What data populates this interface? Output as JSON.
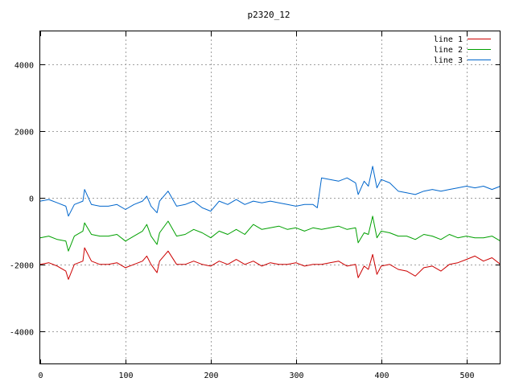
{
  "chart_data": {
    "type": "line",
    "title": "p2320_12",
    "xlabel": "",
    "ylabel": "",
    "xlim": [
      0,
      540
    ],
    "ylim": [
      -5000,
      5000
    ],
    "xticks": [
      0,
      100,
      200,
      300,
      400,
      500
    ],
    "yticks": [
      -4000,
      -2000,
      0,
      2000,
      4000
    ],
    "grid": true,
    "legend_position": "top-right",
    "series": [
      {
        "name": "line 1",
        "color": "#cc0000",
        "x": [
          0,
          10,
          20,
          30,
          33,
          40,
          50,
          52,
          60,
          70,
          80,
          90,
          100,
          110,
          120,
          125,
          130,
          137,
          140,
          150,
          160,
          170,
          180,
          190,
          200,
          210,
          220,
          230,
          240,
          250,
          260,
          270,
          280,
          290,
          300,
          310,
          320,
          330,
          340,
          350,
          360,
          370,
          373,
          380,
          385,
          390,
          395,
          400,
          410,
          420,
          430,
          440,
          450,
          460,
          470,
          480,
          490,
          500,
          510,
          520,
          530,
          540
        ],
        "y": [
          -2000,
          -1950,
          -2050,
          -2200,
          -2450,
          -2000,
          -1900,
          -1500,
          -1900,
          -2000,
          -2000,
          -1950,
          -2100,
          -2000,
          -1900,
          -1750,
          -2000,
          -2250,
          -1900,
          -1600,
          -2000,
          -2000,
          -1900,
          -2000,
          -2050,
          -1900,
          -2000,
          -1850,
          -2000,
          -1900,
          -2050,
          -1950,
          -2000,
          -2000,
          -1950,
          -2050,
          -2000,
          -2000,
          -1950,
          -1900,
          -2050,
          -2000,
          -2400,
          -2050,
          -2150,
          -1700,
          -2300,
          -2050,
          -2000,
          -2150,
          -2200,
          -2350,
          -2100,
          -2050,
          -2200,
          -2000,
          -1950,
          -1850,
          -1750,
          -1900,
          -1800,
          -2000
        ]
      },
      {
        "name": "line 2",
        "color": "#00a000",
        "x": [
          0,
          10,
          20,
          30,
          33,
          40,
          50,
          52,
          60,
          70,
          80,
          90,
          100,
          110,
          120,
          125,
          130,
          137,
          140,
          150,
          160,
          170,
          180,
          190,
          200,
          210,
          220,
          230,
          240,
          250,
          260,
          270,
          280,
          290,
          300,
          310,
          320,
          330,
          340,
          350,
          360,
          370,
          373,
          380,
          385,
          390,
          395,
          400,
          410,
          420,
          430,
          440,
          450,
          460,
          470,
          480,
          490,
          500,
          510,
          520,
          530,
          540
        ],
        "y": [
          -1200,
          -1150,
          -1250,
          -1300,
          -1600,
          -1150,
          -1000,
          -750,
          -1100,
          -1150,
          -1150,
          -1100,
          -1300,
          -1150,
          -1000,
          -800,
          -1150,
          -1400,
          -1050,
          -700,
          -1150,
          -1100,
          -950,
          -1050,
          -1200,
          -1000,
          -1100,
          -950,
          -1100,
          -800,
          -950,
          -900,
          -850,
          -950,
          -900,
          -1000,
          -900,
          -950,
          -900,
          -850,
          -950,
          -900,
          -1350,
          -1050,
          -1100,
          -550,
          -1200,
          -1000,
          -1050,
          -1150,
          -1150,
          -1250,
          -1100,
          -1150,
          -1250,
          -1100,
          -1200,
          -1150,
          -1200,
          -1200,
          -1150,
          -1300
        ]
      },
      {
        "name": "line 3",
        "color": "#0066cc",
        "x": [
          0,
          10,
          20,
          30,
          33,
          40,
          50,
          52,
          60,
          70,
          80,
          90,
          100,
          110,
          120,
          125,
          130,
          137,
          140,
          150,
          160,
          170,
          180,
          190,
          200,
          210,
          220,
          230,
          240,
          250,
          260,
          270,
          280,
          290,
          300,
          310,
          320,
          325,
          330,
          340,
          350,
          360,
          370,
          373,
          380,
          385,
          390,
          395,
          400,
          410,
          420,
          430,
          440,
          450,
          460,
          470,
          480,
          490,
          500,
          510,
          520,
          530,
          540
        ],
        "y": [
          -100,
          -50,
          -150,
          -250,
          -550,
          -200,
          -100,
          250,
          -200,
          -250,
          -250,
          -200,
          -350,
          -200,
          -100,
          50,
          -250,
          -450,
          -100,
          200,
          -250,
          -200,
          -100,
          -300,
          -400,
          -100,
          -200,
          -50,
          -200,
          -100,
          -150,
          -100,
          -150,
          -200,
          -250,
          -200,
          -200,
          -300,
          600,
          550,
          500,
          600,
          450,
          100,
          500,
          350,
          950,
          300,
          550,
          450,
          200,
          150,
          100,
          200,
          250,
          200,
          250,
          300,
          350,
          300,
          350,
          250,
          350
        ]
      }
    ]
  }
}
